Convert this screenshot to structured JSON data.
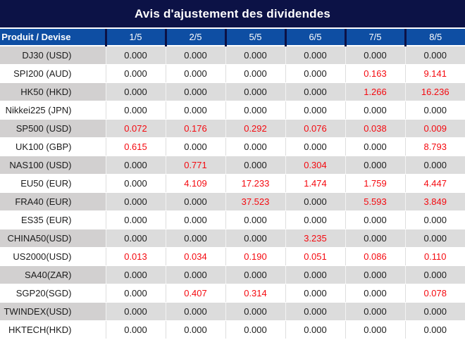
{
  "title": "Avis d'ajustement des dividendes",
  "colors": {
    "title_bg": "#0c1246",
    "header_bg": "#0e4ea3",
    "gray_product": "#d2d0d0",
    "gray_cell": "#dcdcdc",
    "white_cell": "#ffffff",
    "zero_text": "#1c1c1c",
    "nonzero_text": "#f5090f"
  },
  "table": {
    "product_header": "Produit / Devise",
    "date_headers": [
      "1/5",
      "2/5",
      "5/5",
      "6/5",
      "7/5",
      "8/5"
    ],
    "rows": [
      {
        "product": "DJ30 (USD)",
        "values": [
          "0.000",
          "0.000",
          "0.000",
          "0.000",
          "0.000",
          "0.000"
        ]
      },
      {
        "product": "SPI200 (AUD)",
        "values": [
          "0.000",
          "0.000",
          "0.000",
          "0.000",
          "0.163",
          "9.141"
        ]
      },
      {
        "product": "HK50 (HKD)",
        "values": [
          "0.000",
          "0.000",
          "0.000",
          "0.000",
          "1.266",
          "16.236"
        ]
      },
      {
        "product": "Nikkei225 (JPN)",
        "values": [
          "0.000",
          "0.000",
          "0.000",
          "0.000",
          "0.000",
          "0.000"
        ]
      },
      {
        "product": "SP500 (USD)",
        "values": [
          "0.072",
          "0.176",
          "0.292",
          "0.076",
          "0.038",
          "0.009"
        ]
      },
      {
        "product": "UK100 (GBP)",
        "values": [
          "0.615",
          "0.000",
          "0.000",
          "0.000",
          "0.000",
          "8.793"
        ]
      },
      {
        "product": "NAS100 (USD)",
        "values": [
          "0.000",
          "0.771",
          "0.000",
          "0.304",
          "0.000",
          "0.000"
        ]
      },
      {
        "product": "EU50 (EUR)",
        "values": [
          "0.000",
          "4.109",
          "17.233",
          "1.474",
          "1.759",
          "4.447"
        ]
      },
      {
        "product": "FRA40 (EUR)",
        "values": [
          "0.000",
          "0.000",
          "37.523",
          "0.000",
          "5.593",
          "3.849"
        ]
      },
      {
        "product": "ES35 (EUR)",
        "values": [
          "0.000",
          "0.000",
          "0.000",
          "0.000",
          "0.000",
          "0.000"
        ]
      },
      {
        "product": "CHINA50(USD)",
        "values": [
          "0.000",
          "0.000",
          "0.000",
          "3.235",
          "0.000",
          "0.000"
        ]
      },
      {
        "product": "US2000(USD)",
        "values": [
          "0.013",
          "0.034",
          "0.190",
          "0.051",
          "0.086",
          "0.110"
        ]
      },
      {
        "product": "SA40(ZAR)",
        "values": [
          "0.000",
          "0.000",
          "0.000",
          "0.000",
          "0.000",
          "0.000"
        ]
      },
      {
        "product": "SGP20(SGD)",
        "values": [
          "0.000",
          "0.407",
          "0.314",
          "0.000",
          "0.000",
          "0.078"
        ]
      },
      {
        "product": "TWINDEX(USD)",
        "values": [
          "0.000",
          "0.000",
          "0.000",
          "0.000",
          "0.000",
          "0.000"
        ]
      },
      {
        "product": "HKTECH(HKD)",
        "values": [
          "0.000",
          "0.000",
          "0.000",
          "0.000",
          "0.000",
          "0.000"
        ]
      }
    ]
  }
}
